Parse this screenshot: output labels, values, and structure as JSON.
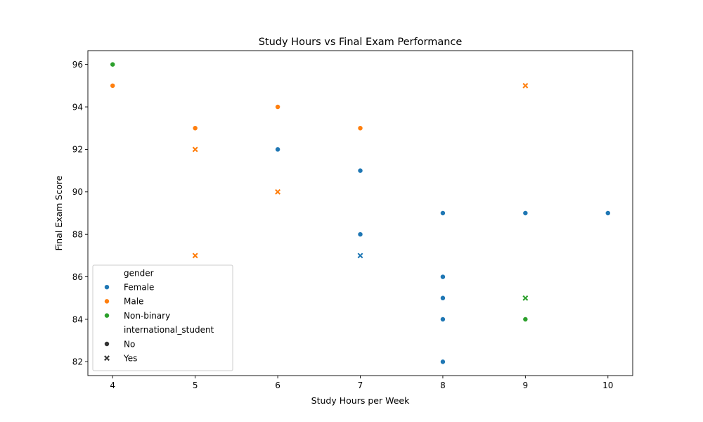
{
  "chart_data": {
    "type": "scatter",
    "title": "Study Hours vs Final Exam Performance",
    "xlabel": "Study Hours per Week",
    "ylabel": "Final Exam Score",
    "xlim": [
      3.7,
      10.3
    ],
    "ylim": [
      81.35,
      96.65
    ],
    "xticks": [
      4,
      5,
      6,
      7,
      8,
      9,
      10
    ],
    "yticks": [
      82,
      84,
      86,
      88,
      90,
      92,
      94,
      96
    ],
    "grid": false,
    "legend_position": "lower-left",
    "hue": {
      "title": "gender",
      "levels": [
        {
          "name": "Female",
          "color": "#1f77b4"
        },
        {
          "name": "Male",
          "color": "#ff7f0e"
        },
        {
          "name": "Non-binary",
          "color": "#2ca02c"
        }
      ]
    },
    "style": {
      "title": "international_student",
      "levels": [
        {
          "name": "No",
          "marker": "circle"
        },
        {
          "name": "Yes",
          "marker": "x"
        }
      ]
    },
    "points": [
      {
        "x": 4,
        "y": 96,
        "gender": "Non-binary",
        "international_student": "No"
      },
      {
        "x": 4,
        "y": 95,
        "gender": "Male",
        "international_student": "No"
      },
      {
        "x": 5,
        "y": 93,
        "gender": "Male",
        "international_student": "No"
      },
      {
        "x": 5,
        "y": 92,
        "gender": "Male",
        "international_student": "Yes"
      },
      {
        "x": 5,
        "y": 87,
        "gender": "Male",
        "international_student": "Yes"
      },
      {
        "x": 6,
        "y": 94,
        "gender": "Male",
        "international_student": "No"
      },
      {
        "x": 6,
        "y": 92,
        "gender": "Female",
        "international_student": "No"
      },
      {
        "x": 6,
        "y": 90,
        "gender": "Male",
        "international_student": "Yes"
      },
      {
        "x": 7,
        "y": 93,
        "gender": "Male",
        "international_student": "No"
      },
      {
        "x": 7,
        "y": 91,
        "gender": "Female",
        "international_student": "No"
      },
      {
        "x": 7,
        "y": 88,
        "gender": "Female",
        "international_student": "No"
      },
      {
        "x": 7,
        "y": 87,
        "gender": "Female",
        "international_student": "Yes"
      },
      {
        "x": 8,
        "y": 89,
        "gender": "Female",
        "international_student": "No"
      },
      {
        "x": 8,
        "y": 86,
        "gender": "Female",
        "international_student": "No"
      },
      {
        "x": 8,
        "y": 85,
        "gender": "Female",
        "international_student": "No"
      },
      {
        "x": 8,
        "y": 84,
        "gender": "Female",
        "international_student": "No"
      },
      {
        "x": 8,
        "y": 82,
        "gender": "Female",
        "international_student": "No"
      },
      {
        "x": 9,
        "y": 95,
        "gender": "Male",
        "international_student": "Yes"
      },
      {
        "x": 9,
        "y": 89,
        "gender": "Female",
        "international_student": "No"
      },
      {
        "x": 9,
        "y": 85,
        "gender": "Non-binary",
        "international_student": "Yes"
      },
      {
        "x": 9,
        "y": 84,
        "gender": "Non-binary",
        "international_student": "No"
      },
      {
        "x": 10,
        "y": 89,
        "gender": "Female",
        "international_student": "No"
      }
    ]
  }
}
